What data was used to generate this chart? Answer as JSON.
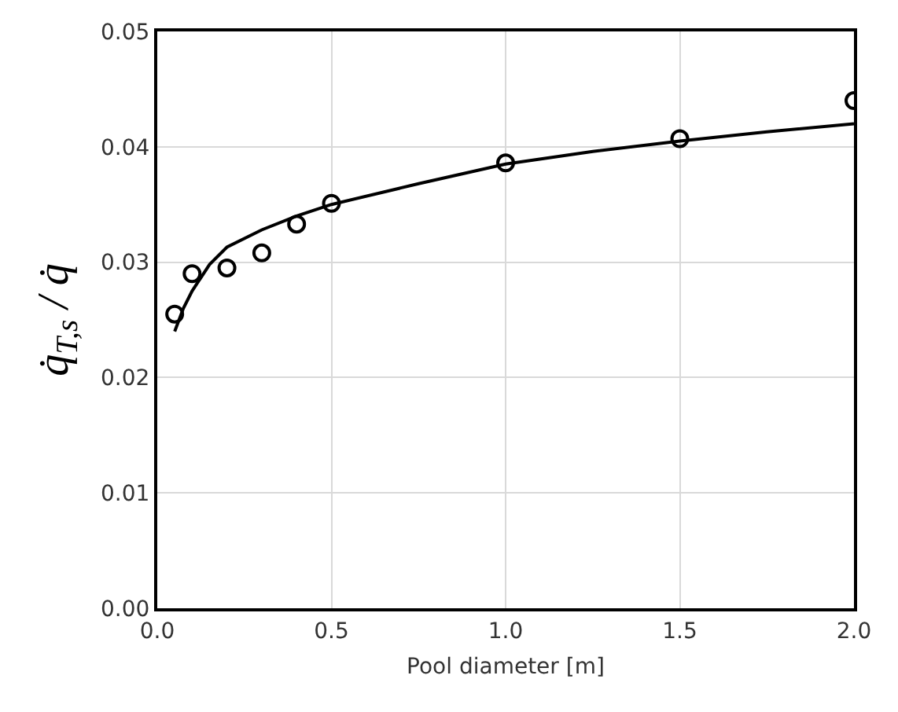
{
  "chart_data": {
    "type": "scatter",
    "xlabel": "Pool diameter [m]",
    "ylabel": "q̇$_{T,s}$ / q̇",
    "xlim": [
      0,
      2
    ],
    "xticks": [
      {
        "value": 0,
        "label": "0.0"
      },
      {
        "value": 0.5,
        "label": "0.5"
      },
      {
        "value": 1,
        "label": "1.0"
      },
      {
        "value": 1.5,
        "label": "1.5"
      },
      {
        "value": 2,
        "label": "2.0"
      }
    ],
    "ylim": [
      0,
      0.05
    ],
    "yticks": [
      {
        "value": 0,
        "label": "0.00"
      },
      {
        "value": 0.01,
        "label": "0.01"
      },
      {
        "value": 0.02,
        "label": "0.02"
      },
      {
        "value": 0.03,
        "label": "0.03"
      },
      {
        "value": 0.04,
        "label": "0.04"
      },
      {
        "value": 0.05,
        "label": "0.05"
      }
    ],
    "grid": true,
    "series": [
      {
        "color": "#000000",
        "marker": "circle",
        "x": [
          0.05,
          0.1,
          0.2,
          0.3,
          0.4,
          0.5,
          1.0,
          1.5,
          2.0
        ],
        "values": [
          0.0255,
          0.029,
          0.0295,
          0.0308,
          0.0333,
          0.0351,
          0.0386,
          0.0407,
          0.044
        ]
      },
      {
        "type": "line",
        "color": "#000000",
        "marker": "none",
        "line_style": "solid",
        "x": [
          0.05,
          0.075,
          0.1,
          0.15,
          0.2,
          0.3,
          0.4,
          0.5,
          0.75,
          1.0,
          1.25,
          1.5,
          1.75,
          2.0
        ],
        "values": [
          0.024,
          0.026,
          0.0275,
          0.0298,
          0.0313,
          0.0328,
          0.034,
          0.035,
          0.0368,
          0.0385,
          0.0396,
          0.0405,
          0.0413,
          0.042
        ]
      }
    ]
  }
}
